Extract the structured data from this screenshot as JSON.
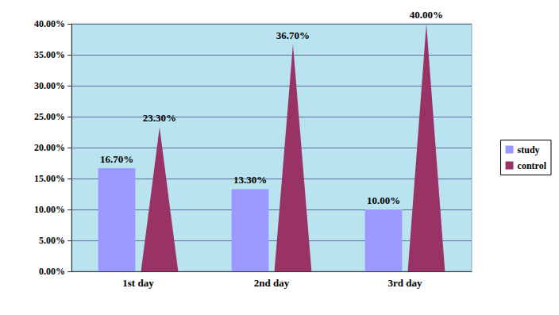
{
  "chart_data": {
    "type": "bar",
    "categories": [
      "1st day",
      "2nd day",
      "3rd day"
    ],
    "series": [
      {
        "name": "study",
        "type": "bar",
        "color": "#9999ff",
        "values": [
          16.7,
          13.3,
          10.0
        ],
        "value_labels": [
          "16.70%",
          "13.30%",
          "10.00%"
        ]
      },
      {
        "name": "control",
        "type": "cone",
        "color": "#993366",
        "values": [
          23.3,
          36.7,
          40.0
        ],
        "value_labels": [
          "23.30%",
          "36.70%",
          "40.00%"
        ]
      }
    ],
    "ylim": [
      0,
      40
    ],
    "yticks": [
      {
        "value": 0,
        "label": "0.00%"
      },
      {
        "value": 5,
        "label": "5.00%"
      },
      {
        "value": 10,
        "label": "10.00%"
      },
      {
        "value": 15,
        "label": "15.00%"
      },
      {
        "value": 20,
        "label": "20.00%"
      },
      {
        "value": 25,
        "label": "25.00%"
      },
      {
        "value": 30,
        "label": "30.00%"
      },
      {
        "value": 35,
        "label": "35.00%"
      },
      {
        "value": 40,
        "label": "40.00%"
      }
    ],
    "grid": true,
    "legend": "right",
    "data_labels": true
  }
}
